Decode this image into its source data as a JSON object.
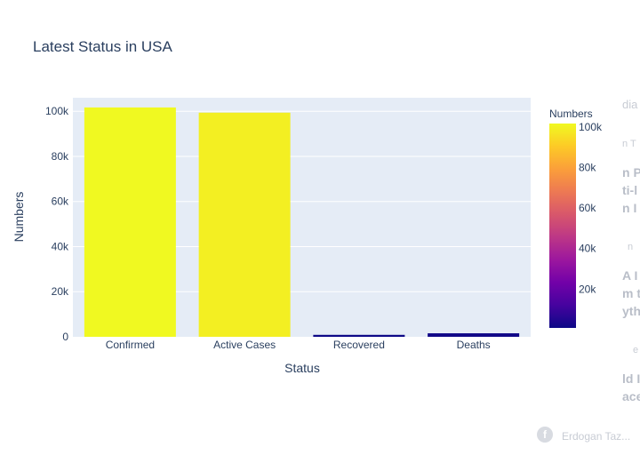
{
  "chart_data": {
    "type": "bar",
    "title": "Latest Status in USA",
    "xlabel": "Status",
    "ylabel": "Numbers",
    "categories": [
      "Confirmed",
      "Active Cases",
      "Recovered",
      "Deaths"
    ],
    "values": [
      101700,
      99400,
      870,
      1560
    ],
    "ylim": [
      0,
      106000
    ],
    "yticks": [
      0,
      20000,
      40000,
      60000,
      80000,
      100000
    ],
    "ytick_labels": [
      "0",
      "20k",
      "40k",
      "60k",
      "80k",
      "100k"
    ],
    "grid": true,
    "plot_bg": "#e5ecf6",
    "colorbar": {
      "title": "Numbers",
      "range": [
        870,
        101700
      ],
      "ticks": [
        20000,
        40000,
        60000,
        80000,
        100000
      ],
      "tick_labels": [
        "20k",
        "40k",
        "60k",
        "80k",
        "100k"
      ],
      "colorscale": [
        "#0d0887",
        "#46039f",
        "#7201a8",
        "#9c179e",
        "#bd3786",
        "#d8576b",
        "#ed7953",
        "#fb9f3a",
        "#fdca26",
        "#f0f921"
      ]
    }
  },
  "background": {
    "fragments": [
      "dia",
      "n T",
      "n P",
      "ti-l",
      "n I",
      "n",
      "A I",
      "m t",
      "yth",
      "e",
      "ld I",
      "ace"
    ],
    "footer": "Erdogan Taz..."
  }
}
